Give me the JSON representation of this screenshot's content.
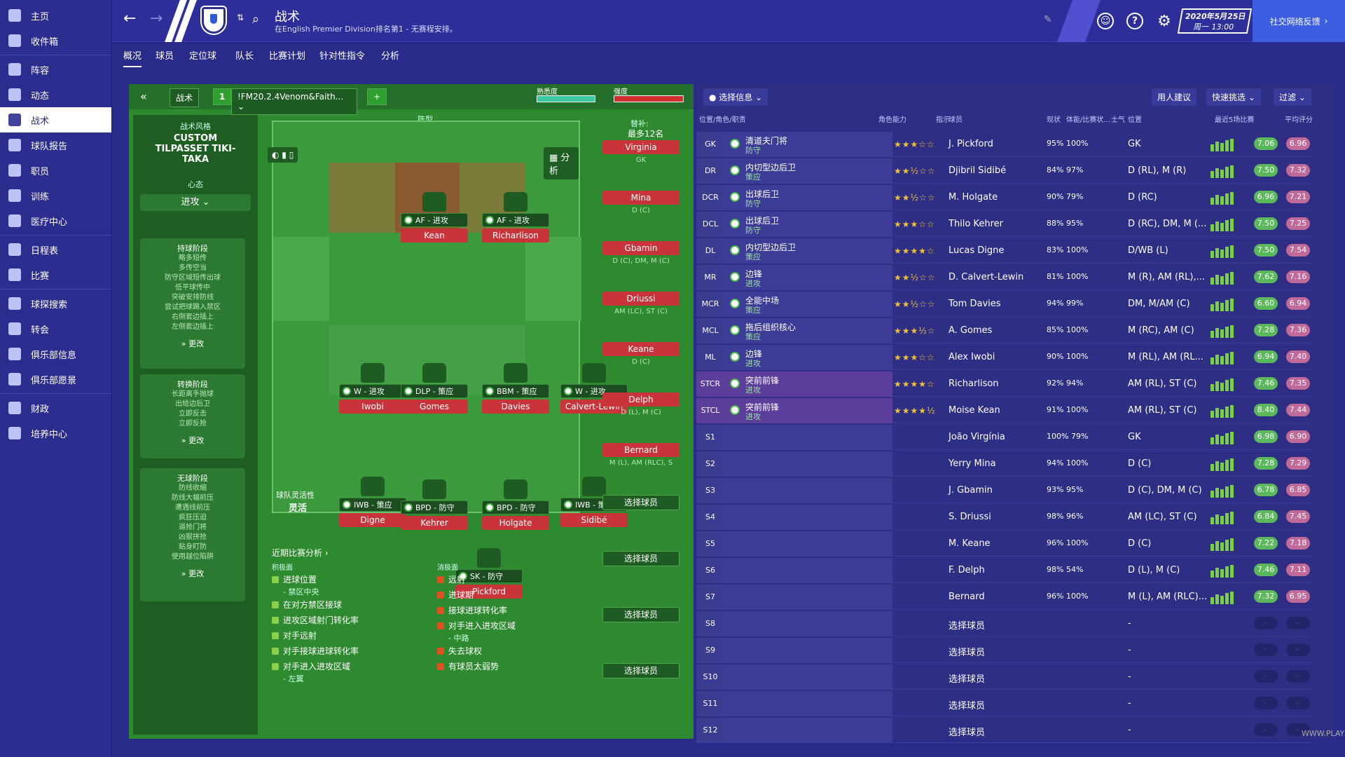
{
  "sidebar": {
    "items": [
      {
        "label": "主页"
      },
      {
        "label": "收件箱"
      },
      {
        "label": "阵容"
      },
      {
        "label": "动态"
      },
      {
        "label": "战术",
        "active": true
      },
      {
        "label": "球队报告"
      },
      {
        "label": "职员"
      },
      {
        "label": "训练"
      },
      {
        "label": "医疗中心"
      },
      {
        "label": "日程表"
      },
      {
        "label": "比赛"
      },
      {
        "label": "球探搜索"
      },
      {
        "label": "转会"
      },
      {
        "label": "俱乐部信息"
      },
      {
        "label": "俱乐部愿景"
      },
      {
        "label": "财政"
      },
      {
        "label": "培养中心"
      }
    ]
  },
  "topbar": {
    "title": "战术",
    "subtitle": "在English Premier Division排名第1 - 无赛程安排。",
    "date_line1": "2020年5月25日",
    "date_line2": "周一 13:00",
    "social": "社交网络反馈"
  },
  "subnav": {
    "tabs": [
      "概况",
      "球员",
      "定位球",
      "队长",
      "比赛计划",
      "针对性指令",
      "分析"
    ]
  },
  "left": {
    "tactic_tab": "战术",
    "tactic_number": "1",
    "tactic_name": "!FM20.2.4Venom&Faith...",
    "familiarity": "熟悉度",
    "intensity": "强度",
    "style_label": "战术风格",
    "style_name": "CUSTOM TILPASSET TIKI-TAKA",
    "mentality_label": "心态",
    "mentality": "进攻",
    "formation_label": "阵型",
    "formation": "4-4-2",
    "analysis_btn": "分析",
    "subs_label": "替补:",
    "subs_count": "最多12名",
    "flex_label": "球队灵活性",
    "flex_value": "灵活",
    "phases": [
      {
        "title": "持球阶段",
        "items": [
          "略多短传",
          "多传空当",
          "防守区域短传出球",
          "低平球传中",
          "突破安排防线",
          "尝试把球踢入禁区",
          "右侧套边插上",
          "左侧套边插上"
        ],
        "change": "更改"
      },
      {
        "title": "转换阶段",
        "items": [
          "长距离手抛球",
          "出给边后卫",
          "立即反击",
          "立即反抢"
        ],
        "change": "更改"
      },
      {
        "title": "无球阶段",
        "items": [
          "防线收缩",
          "防线大幅前压",
          "遭遇线前压",
          "疯狂压迫",
          "逼抢门将",
          "凶狠拼抢",
          "贴身盯防",
          "使用越位陷阱"
        ],
        "change": "更改"
      }
    ],
    "players": [
      {
        "role": "AF - 进攻",
        "name": "Kean"
      },
      {
        "role": "AF - 进攻",
        "name": "Richarlison"
      },
      {
        "role": "W - 进攻",
        "name": "Iwobi"
      },
      {
        "role": "DLP - 策应",
        "name": "Gomes"
      },
      {
        "role": "BBM - 策应",
        "name": "Davies"
      },
      {
        "role": "W - 进攻",
        "name": "Calvert-Lewin"
      },
      {
        "role": "IWB - 策应",
        "name": "Digne"
      },
      {
        "role": "BPD - 防守",
        "name": "Kehrer"
      },
      {
        "role": "BPD - 防守",
        "name": "Holgate"
      },
      {
        "role": "IWB - 策应",
        "name": "Sidibé"
      },
      {
        "role": "SK - 防守",
        "name": "Pickford"
      }
    ],
    "subs": [
      {
        "name": "Virginia",
        "pos": "GK"
      },
      {
        "name": "Mina",
        "pos": "D (C)"
      },
      {
        "name": "Gbamin",
        "pos": "D (C), DM, M (C)"
      },
      {
        "name": "Driussi",
        "pos": "AM (LC), ST (C)"
      },
      {
        "name": "Keane",
        "pos": "D (C)"
      },
      {
        "name": "Delph",
        "pos": "D (L), M (C)"
      },
      {
        "name": "Bernard",
        "pos": "M (L), AM (RLC), S"
      }
    ],
    "select_player": "选择球员",
    "recent_analysis": "近期比赛分析 ›",
    "positive_label": "积极面",
    "negative_label": "消极面",
    "positives": [
      "进球位置",
      "- 禁区中央",
      "在对方禁区接球",
      "进攻区域射门转化率",
      "对手远射",
      "对手接球进球转化率",
      "对手进入进攻区域",
      "- 左翼"
    ],
    "negatives": [
      "远射",
      "进球期",
      "接球进球转化率",
      "对手进入进攻区域",
      "- 中路",
      "失去球权",
      "有球员太弱势"
    ]
  },
  "right": {
    "select_info": "选择信息",
    "suggest": "用人建议",
    "quick": "快速挑选",
    "filter": "过滤",
    "headers": [
      "位置/角色/职责",
      "角色能力",
      "指示",
      "球员",
      "现状",
      "体能/比赛状…",
      "士气",
      "位置",
      "最近5场比赛",
      "平均评分"
    ],
    "rows": [
      {
        "pos": "GK",
        "role": "清道夫门将",
        "duty": "防守",
        "stars": "★★★☆☆",
        "player": "J. Pickford",
        "cond": "95% 100%",
        "ppos": "GK",
        "r1": "7.06",
        "r2": "6.96"
      },
      {
        "pos": "DR",
        "role": "内切型边后卫",
        "duty": "策应",
        "stars": "★★½☆☆",
        "player": "Djibril Sidibé",
        "cond": "84% 97%",
        "ppos": "D (RL), M (R)",
        "r1": "7.50",
        "r2": "7.32"
      },
      {
        "pos": "DCR",
        "role": "出球后卫",
        "duty": "防守",
        "stars": "★★½☆☆",
        "player": "M. Holgate",
        "cond": "90% 79%",
        "ppos": "D (RC)",
        "r1": "6.96",
        "r2": "7.21"
      },
      {
        "pos": "DCL",
        "role": "出球后卫",
        "duty": "防守",
        "stars": "★★★☆☆",
        "player": "Thilo Kehrer",
        "cond": "88% 95%",
        "ppos": "D (RC), DM, M (...",
        "r1": "7.50",
        "r2": "7.25"
      },
      {
        "pos": "DL",
        "role": "内切型边后卫",
        "duty": "策应",
        "stars": "★★★★☆",
        "player": "Lucas Digne",
        "cond": "83% 100%",
        "ppos": "D/WB (L)",
        "r1": "7.50",
        "r2": "7.54"
      },
      {
        "pos": "MR",
        "role": "边锋",
        "duty": "进攻",
        "stars": "★★½☆☆",
        "player": "D. Calvert-Lewin",
        "cond": "81% 100%",
        "ppos": "M (R), AM (RL),...",
        "r1": "7.62",
        "r2": "7.16"
      },
      {
        "pos": "MCR",
        "role": "全能中场",
        "duty": "策应",
        "stars": "★★½☆☆",
        "player": "Tom Davies",
        "cond": "94% 99%",
        "ppos": "DM, M/AM (C)",
        "r1": "6.60",
        "r2": "6.94"
      },
      {
        "pos": "MCL",
        "role": "拖后组织核心",
        "duty": "策应",
        "stars": "★★★½☆",
        "player": "A. Gomes",
        "cond": "85% 100%",
        "ppos": "M (RC), AM (C)",
        "r1": "7.28",
        "r2": "7.36"
      },
      {
        "pos": "ML",
        "role": "边锋",
        "duty": "进攻",
        "stars": "★★★☆☆",
        "player": "Alex Iwobi",
        "cond": "90% 100%",
        "ppos": "M (RL), AM (RL...",
        "r1": "6.94",
        "r2": "7.40"
      },
      {
        "pos": "STCR",
        "role": "突前前锋",
        "duty": "进攻",
        "stars": "★★★★☆",
        "player": "Richarlison",
        "cond": "92% 94%",
        "ppos": "AM (RL), ST (C)",
        "r1": "7.46",
        "r2": "7.35"
      },
      {
        "pos": "STCL",
        "role": "突前前锋",
        "duty": "进攻",
        "stars": "★★★★½",
        "player": "Moise Kean",
        "cond": "91% 100%",
        "ppos": "AM (RL), ST (C)",
        "r1": "8.40",
        "r2": "7.44"
      },
      {
        "pos": "S1",
        "role": "",
        "duty": "",
        "stars": "",
        "player": "João Virgínia",
        "cond": "100% 79%",
        "ppos": "GK",
        "r1": "6.98",
        "r2": "6.90"
      },
      {
        "pos": "S2",
        "role": "",
        "duty": "",
        "stars": "",
        "player": "Yerry Mina",
        "cond": "94% 100%",
        "ppos": "D (C)",
        "r1": "7.28",
        "r2": "7.29"
      },
      {
        "pos": "S3",
        "role": "",
        "duty": "",
        "stars": "",
        "player": "J. Gbamin",
        "cond": "93% 95%",
        "ppos": "D (C), DM, M (C)",
        "r1": "6.78",
        "r2": "6.85"
      },
      {
        "pos": "S4",
        "role": "",
        "duty": "",
        "stars": "",
        "player": "S. Driussi",
        "cond": "98% 96%",
        "ppos": "AM (LC), ST (C)",
        "r1": "6.84",
        "r2": "7.45"
      },
      {
        "pos": "S5",
        "role": "",
        "duty": "",
        "stars": "",
        "player": "M. Keane",
        "cond": "96% 100%",
        "ppos": "D (C)",
        "r1": "7.22",
        "r2": "7.18"
      },
      {
        "pos": "S6",
        "role": "",
        "duty": "",
        "stars": "",
        "player": "F. Delph",
        "cond": "98% 54%",
        "ppos": "D (L), M (C)",
        "r1": "7.46",
        "r2": "7.11"
      },
      {
        "pos": "S7",
        "role": "",
        "duty": "",
        "stars": "",
        "player": "Bernard",
        "cond": "96% 100%",
        "ppos": "M (L), AM (RLC)...",
        "r1": "7.32",
        "r2": "6.95"
      },
      {
        "pos": "S8",
        "role": "",
        "duty": "",
        "stars": "",
        "player": "选择球员",
        "cond": "",
        "ppos": "-",
        "r1": "",
        "r2": ""
      },
      {
        "pos": "S9",
        "role": "",
        "duty": "",
        "stars": "",
        "player": "选择球员",
        "cond": "",
        "ppos": "-",
        "r1": "",
        "r2": ""
      },
      {
        "pos": "S10",
        "role": "",
        "duty": "",
        "stars": "",
        "player": "选择球员",
        "cond": "",
        "ppos": "-",
        "r1": "",
        "r2": ""
      },
      {
        "pos": "S11",
        "role": "",
        "duty": "",
        "stars": "",
        "player": "选择球员",
        "cond": "",
        "ppos": "-",
        "r1": "",
        "r2": ""
      },
      {
        "pos": "S12",
        "role": "",
        "duty": "",
        "stars": "",
        "player": "选择球员",
        "cond": "",
        "ppos": "-",
        "r1": "",
        "r2": ""
      }
    ]
  },
  "watermark": "WWW.PLAYSM.CC"
}
